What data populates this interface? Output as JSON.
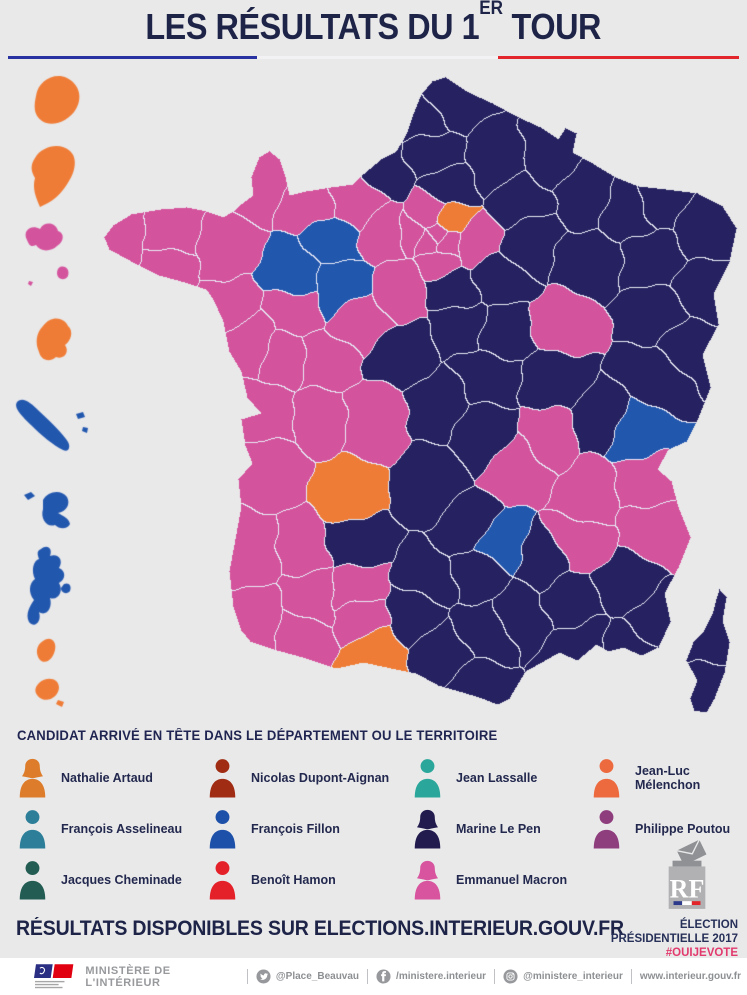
{
  "title": {
    "prefix": "LES RÉSULTATS DU 1",
    "superscript": "ER",
    "suffix": " TOUR"
  },
  "title_rule_colors": {
    "left": "#2832a0",
    "middle": "#f2f2f4",
    "right": "#e3262b"
  },
  "legend": {
    "heading": "CANDIDAT ARRIVÉ EN TÊTE DANS LE DÉPARTEMENT OU LE TERRITOIRE",
    "candidates": [
      {
        "id": "artaud",
        "name": "Nathalie Artaud",
        "color": "#dd7d2b",
        "icon": "person-female"
      },
      {
        "id": "dupontaignan",
        "name": "Nicolas Dupont-Aignan",
        "color": "#a02c13",
        "icon": "person-male"
      },
      {
        "id": "lassalle",
        "name": "Jean Lassalle",
        "color": "#2aa79a",
        "icon": "person-male"
      },
      {
        "id": "melenchon",
        "name": "Jean-Luc Mélenchon",
        "color": "#ec6a3e",
        "icon": "person-male"
      },
      {
        "id": "asselineau",
        "name": "François Asselineau",
        "color": "#2d7f99",
        "icon": "person-male"
      },
      {
        "id": "fillon",
        "name": "François Fillon",
        "color": "#1d50a8",
        "icon": "person-male"
      },
      {
        "id": "lepen",
        "name": "Marine Le Pen",
        "color": "#221c4e",
        "icon": "person-female"
      },
      {
        "id": "poutou",
        "name": "Philippe Poutou",
        "color": "#8e3d7d",
        "icon": "person-male"
      },
      {
        "id": "cheminade",
        "name": "Jacques Cheminade",
        "color": "#235c52",
        "icon": "person-male"
      },
      {
        "id": "hamon",
        "name": "Benoît Hamon",
        "color": "#e42029",
        "icon": "person-male"
      },
      {
        "id": "macron",
        "name": "Emmanuel Macron",
        "color": "#d8549e",
        "icon": "person-female"
      }
    ]
  },
  "map": {
    "background": "#e9e9ea",
    "border_color": "#e8eaf6",
    "winner_colors": {
      "lepen": "#262160",
      "macron": "#d4539d",
      "fillon": "#2257ae",
      "melenchon": "#ef7c36"
    },
    "departments": [
      [
        450,
        100,
        "lepen"
      ],
      [
        424,
        120,
        "lepen"
      ],
      [
        432,
        152,
        "lepen"
      ],
      [
        383,
        168,
        "lepen"
      ],
      [
        448,
        188,
        "lepen"
      ],
      [
        498,
        162,
        "lepen"
      ],
      [
        549,
        158,
        "lepen"
      ],
      [
        523,
        200,
        "lepen"
      ],
      [
        585,
        197,
        "lepen"
      ],
      [
        627,
        207,
        "lepen"
      ],
      [
        660,
        193,
        "lepen"
      ],
      [
        706,
        232,
        "lepen"
      ],
      [
        700,
        288,
        "lepen"
      ],
      [
        656,
        262,
        "lepen"
      ],
      [
        585,
        262,
        "lepen"
      ],
      [
        532,
        240,
        "lepen"
      ],
      [
        498,
        282,
        "lepen"
      ],
      [
        455,
        290,
        "lepen"
      ],
      [
        462,
        322,
        "lepen"
      ],
      [
        505,
        330,
        "lepen"
      ],
      [
        487,
        378,
        "lepen"
      ],
      [
        402,
        352,
        "lepen"
      ],
      [
        440,
        405,
        "lepen"
      ],
      [
        483,
        432,
        "lepen"
      ],
      [
        432,
        485,
        "lepen"
      ],
      [
        468,
        528,
        "lepen"
      ],
      [
        352,
        542,
        "lepen"
      ],
      [
        430,
        580,
        "lepen"
      ],
      [
        412,
        614,
        "lepen"
      ],
      [
        442,
        655,
        "lepen"
      ],
      [
        474,
        688,
        "lepen"
      ],
      [
        483,
        630,
        "lepen"
      ],
      [
        522,
        612,
        "lepen"
      ],
      [
        477,
        573,
        "lepen"
      ],
      [
        543,
        562,
        "lepen"
      ],
      [
        567,
        600,
        "lepen"
      ],
      [
        580,
        648,
        "lepen"
      ],
      [
        630,
        652,
        "lepen"
      ],
      [
        655,
        618,
        "lepen"
      ],
      [
        627,
        583,
        "lepen"
      ],
      [
        600,
        420,
        "lepen"
      ],
      [
        655,
        375,
        "lepen"
      ],
      [
        688,
        347,
        "lepen"
      ],
      [
        658,
        313,
        "lepen"
      ],
      [
        555,
        378,
        "lepen"
      ],
      [
        706,
        640,
        "lepen"
      ],
      [
        702,
        688,
        "lepen"
      ],
      [
        268,
        180,
        "macron"
      ],
      [
        310,
        203,
        "macron"
      ],
      [
        355,
        200,
        "macron"
      ],
      [
        390,
        232,
        "macron"
      ],
      [
        470,
        242,
        "macron"
      ],
      [
        415,
        232,
        "macron"
      ],
      [
        438,
        258,
        "macron"
      ],
      [
        430,
        216,
        "macron"
      ],
      [
        436,
        231,
        "macron"
      ],
      [
        428,
        238,
        "macron"
      ],
      [
        445,
        243,
        "macron"
      ],
      [
        122,
        240,
        "macron"
      ],
      [
        168,
        235,
        "macron"
      ],
      [
        168,
        268,
        "macron"
      ],
      [
        225,
        255,
        "macron"
      ],
      [
        228,
        302,
        "macron"
      ],
      [
        252,
        340,
        "macron"
      ],
      [
        292,
        312,
        "macron"
      ],
      [
        362,
        318,
        "macron"
      ],
      [
        400,
        290,
        "macron"
      ],
      [
        285,
        357,
        "macron"
      ],
      [
        322,
        362,
        "macron"
      ],
      [
        270,
        412,
        "macron"
      ],
      [
        318,
        418,
        "macron"
      ],
      [
        372,
        420,
        "macron"
      ],
      [
        275,
        470,
        "macron"
      ],
      [
        303,
        547,
        "macron"
      ],
      [
        255,
        552,
        "macron"
      ],
      [
        256,
        622,
        "macron"
      ],
      [
        302,
        640,
        "macron"
      ],
      [
        312,
        596,
        "macron"
      ],
      [
        357,
        590,
        "macron"
      ],
      [
        362,
        618,
        "macron"
      ],
      [
        560,
        325,
        "macron"
      ],
      [
        522,
        465,
        "macron"
      ],
      [
        548,
        440,
        "macron"
      ],
      [
        588,
        492,
        "macron"
      ],
      [
        643,
        478,
        "macron"
      ],
      [
        577,
        545,
        "macron"
      ],
      [
        655,
        532,
        "macron"
      ],
      [
        330,
        238,
        "fillon"
      ],
      [
        292,
        272,
        "fillon"
      ],
      [
        342,
        288,
        "fillon"
      ],
      [
        636,
        435,
        "fillon"
      ],
      [
        500,
        545,
        "fillon"
      ],
      [
        450,
        224,
        "melenchon"
      ],
      [
        345,
        497,
        "melenchon"
      ],
      [
        375,
        651,
        "melenchon"
      ]
    ],
    "territories": [
      {
        "id": "reunion",
        "winner": "melenchon"
      },
      {
        "id": "guyane",
        "winner": "melenchon"
      },
      {
        "id": "guadeloupe",
        "winner": "macron"
      },
      {
        "id": "martinique",
        "winner": "melenchon"
      },
      {
        "id": "nouvelle-caledonie",
        "winner": "fillon"
      },
      {
        "id": "polynesie",
        "winner": "fillon"
      },
      {
        "id": "mayotte",
        "winner": "fillon"
      },
      {
        "id": "saint-pierre-et-miquelon",
        "winner": "melenchon"
      }
    ]
  },
  "results_line": "RÉSULTATS DISPONIBLES SUR ELECTIONS.INTERIEUR.GOUV.FR",
  "election_badge": {
    "line1": "ÉLECTION",
    "line2": "PRÉSIDENTIELLE 2017",
    "hashtag": "#OUIJEVOTE",
    "hashtag_color": "#e23a6d",
    "ballot_letters": "RF"
  },
  "footer": {
    "ministry": "MINISTÈRE DE L'INTÉRIEUR",
    "social": [
      {
        "icon": "twitter",
        "label": "@Place_Beauvau"
      },
      {
        "icon": "facebook",
        "label": "/ministere.interieur"
      },
      {
        "icon": "instagram",
        "label": "@ministere_interieur"
      },
      {
        "icon": "none",
        "label": "www.interieur.gouv.fr"
      }
    ]
  }
}
